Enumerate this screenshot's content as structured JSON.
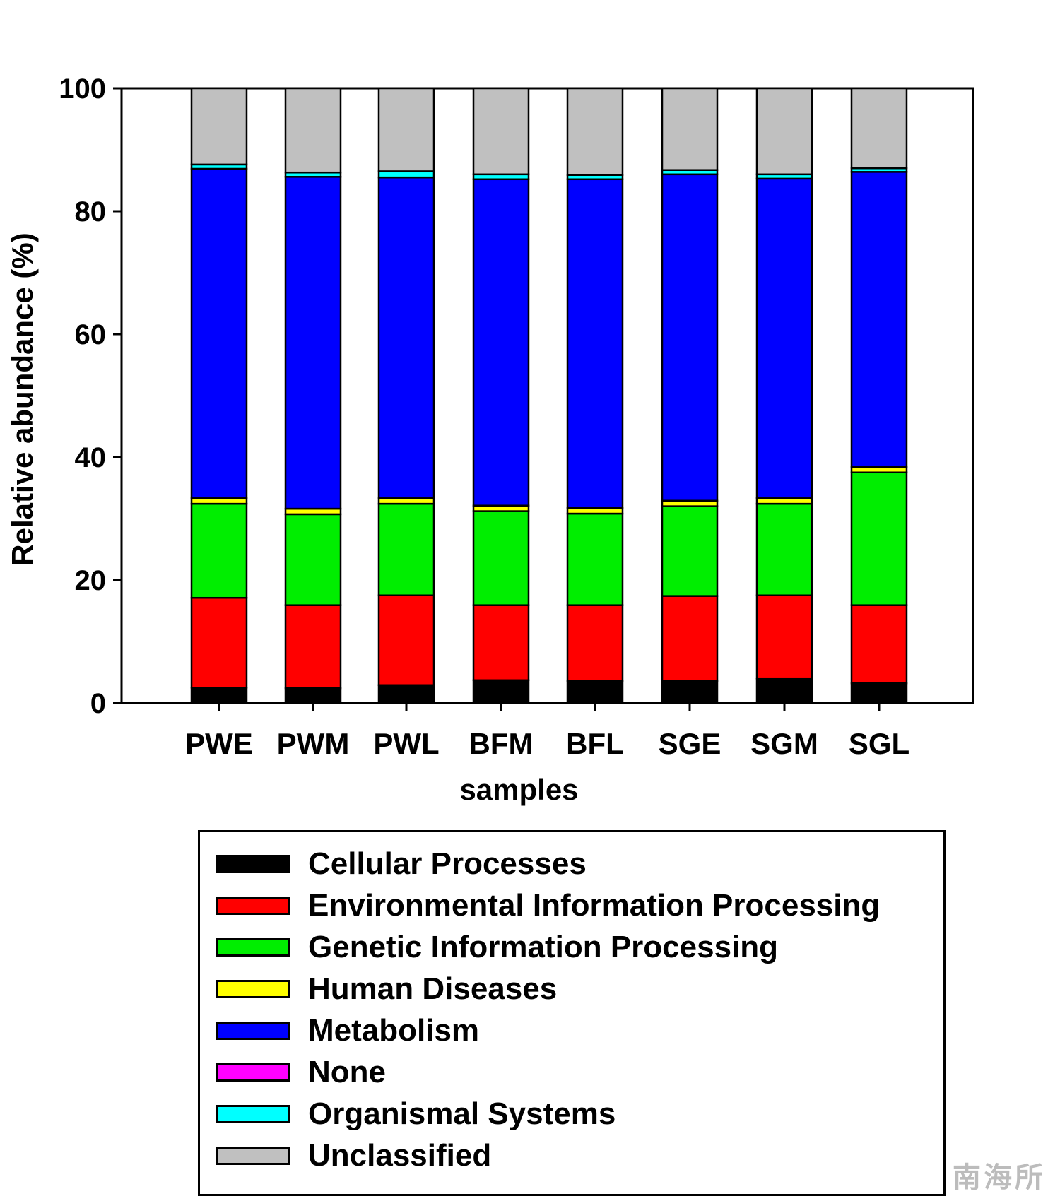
{
  "chart_data": {
    "type": "bar",
    "stacked": true,
    "title": "",
    "xlabel": "samples",
    "ylabel": "Relative abundance (%)",
    "ylim": [
      0,
      100
    ],
    "yticks": [
      0,
      20,
      40,
      60,
      80,
      100
    ],
    "grid": false,
    "legend_position": "bottom",
    "categories": [
      "PWE",
      "PWM",
      "PWL",
      "BFM",
      "BFL",
      "SGE",
      "SGM",
      "SGL"
    ],
    "series": [
      {
        "name": "Cellular Processes",
        "color": "#000000",
        "values": [
          2.5,
          2.4,
          2.9,
          3.7,
          3.6,
          3.6,
          4.0,
          3.2
        ]
      },
      {
        "name": "Environmental Information Processing",
        "color": "#ff0000",
        "values": [
          14.6,
          13.5,
          14.6,
          12.2,
          12.3,
          13.8,
          13.5,
          12.7
        ]
      },
      {
        "name": "Genetic Information Processing",
        "color": "#00ee00",
        "values": [
          15.3,
          14.8,
          14.9,
          15.3,
          14.9,
          14.6,
          14.9,
          21.6
        ]
      },
      {
        "name": "Human Diseases",
        "color": "#ffff00",
        "values": [
          0.9,
          0.9,
          0.9,
          0.9,
          0.9,
          0.9,
          0.9,
          0.9
        ]
      },
      {
        "name": "Metabolism",
        "color": "#0000ff",
        "values": [
          53.6,
          54.0,
          52.2,
          53.1,
          53.5,
          53.1,
          52.0,
          48.0
        ]
      },
      {
        "name": "None",
        "color": "#ff00ff",
        "values": [
          0,
          0,
          0,
          0,
          0,
          0,
          0,
          0
        ]
      },
      {
        "name": "Organismal Systems",
        "color": "#00ffff",
        "values": [
          0.7,
          0.7,
          1.0,
          0.8,
          0.7,
          0.7,
          0.7,
          0.6
        ]
      },
      {
        "name": "Unclassified",
        "color": "#c0c0c0",
        "values": [
          12.4,
          13.7,
          13.5,
          14.0,
          14.1,
          13.3,
          14.0,
          13.0
        ]
      }
    ]
  },
  "watermark": "南海所"
}
